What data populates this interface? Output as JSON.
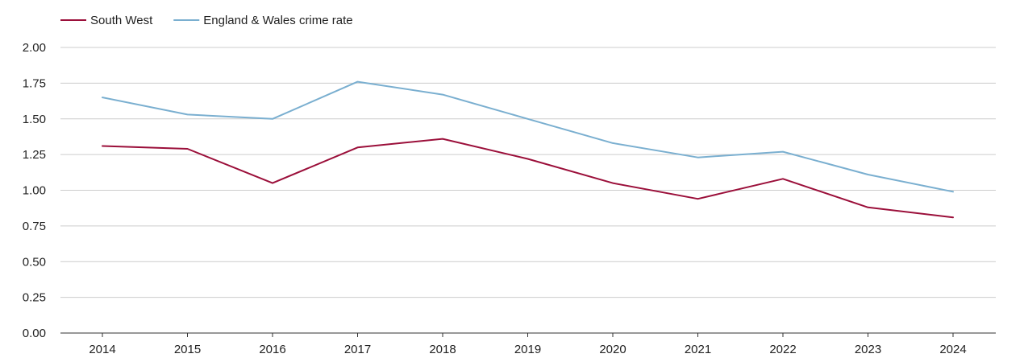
{
  "chart_data": {
    "type": "line",
    "title": "",
    "xlabel": "",
    "ylabel": "",
    "categories": [
      "2014",
      "2015",
      "2016",
      "2017",
      "2018",
      "2019",
      "2020",
      "2021",
      "2022",
      "2023",
      "2024"
    ],
    "ylim": [
      0,
      2
    ],
    "yticks": [
      "0.00",
      "0.25",
      "0.50",
      "0.75",
      "1.00",
      "1.25",
      "1.50",
      "1.75",
      "2.00"
    ],
    "grid": true,
    "legend_position": "top-left",
    "series": [
      {
        "name": "South West",
        "color": "#9b0f3a",
        "values": [
          1.31,
          1.29,
          1.05,
          1.3,
          1.36,
          1.22,
          1.05,
          0.94,
          1.08,
          0.88,
          0.81
        ]
      },
      {
        "name": "England & Wales crime rate",
        "color": "#7aafd0",
        "values": [
          1.65,
          1.53,
          1.5,
          1.76,
          1.67,
          1.5,
          1.33,
          1.23,
          1.27,
          1.11,
          0.99
        ]
      }
    ]
  }
}
